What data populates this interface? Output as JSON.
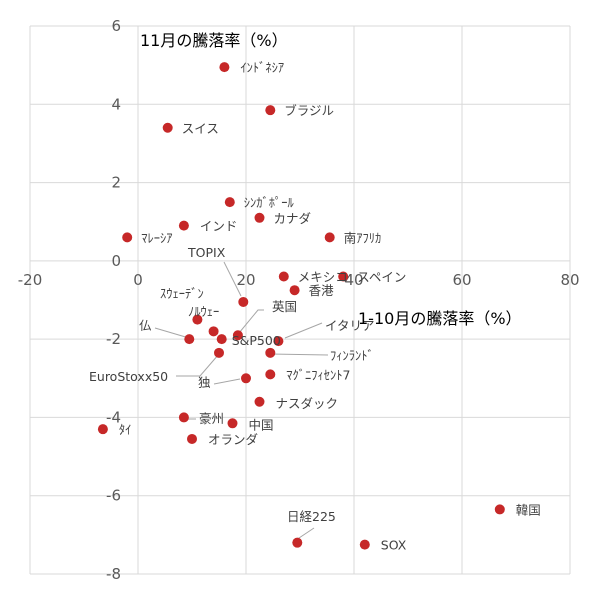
{
  "chart_data": {
    "type": "scatter",
    "xlabel": "1-10月の騰落率（%）",
    "ylabel": "11月の騰落率（%）",
    "xlim": [
      -20,
      80
    ],
    "ylim": [
      -8,
      6
    ],
    "xticks": [
      -20,
      0,
      20,
      40,
      60,
      80
    ],
    "yticks": [
      -8,
      -6,
      -4,
      -2,
      0,
      2,
      4,
      6
    ],
    "grid": true,
    "marker_color": "#c62828",
    "points": [
      {
        "label": "ｲﾝﾄﾞﾈｼｱ",
        "x": 16.0,
        "y": 4.95
      },
      {
        "label": "ブラジル",
        "x": 24.5,
        "y": 3.85
      },
      {
        "label": "スイス",
        "x": 5.5,
        "y": 3.4
      },
      {
        "label": "ｼﾝｶﾞﾎﾟｰﾙ",
        "x": 17.0,
        "y": 1.5
      },
      {
        "label": "カナダ",
        "x": 22.5,
        "y": 1.1
      },
      {
        "label": "インド",
        "x": 8.5,
        "y": 0.9
      },
      {
        "label": "ﾏﾚｰｼｱ",
        "x": -2.0,
        "y": 0.6
      },
      {
        "label": "南ｱﾌﾘｶ",
        "x": 35.5,
        "y": 0.6
      },
      {
        "label": "TOPIX",
        "x": 19.5,
        "y": -1.05
      },
      {
        "label": "メキシコ",
        "x": 27.0,
        "y": -0.4
      },
      {
        "label": "スペイン",
        "x": 38.0,
        "y": -0.4
      },
      {
        "label": "香港",
        "x": 29.0,
        "y": -0.75
      },
      {
        "label": "ｽｳｪｰﾃﾞﾝ",
        "x": 11.0,
        "y": -1.5
      },
      {
        "label": "ﾉﾙｳｪｰ",
        "x": 14.0,
        "y": -1.8
      },
      {
        "label": "英国",
        "x": 18.5,
        "y": -1.9
      },
      {
        "label": "仏",
        "x": 9.5,
        "y": -2.0
      },
      {
        "label": "S&P500",
        "x": 15.5,
        "y": -2.0
      },
      {
        "label": "イタリア",
        "x": 26.0,
        "y": -2.05
      },
      {
        "label": "ﾌｨﾝﾗﾝﾄﾞ",
        "x": 24.5,
        "y": -2.35
      },
      {
        "label": "EuroStoxx50",
        "x": 15.0,
        "y": -2.35
      },
      {
        "label": "ﾏｸﾞﾆﾌｨｾﾝﾄ7",
        "x": 24.5,
        "y": -2.9
      },
      {
        "label": "独",
        "x": 20.0,
        "y": -3.0
      },
      {
        "label": "ナスダック",
        "x": 22.5,
        "y": -3.6
      },
      {
        "label": "豪州",
        "x": 8.5,
        "y": -4.0
      },
      {
        "label": "中国",
        "x": 17.5,
        "y": -4.15
      },
      {
        "label": "ﾀｲ",
        "x": -6.5,
        "y": -4.3
      },
      {
        "label": "オランダ",
        "x": 10.0,
        "y": -4.55
      },
      {
        "label": "韓国",
        "x": 67.0,
        "y": -6.35
      },
      {
        "label": "日経225",
        "x": 29.5,
        "y": -7.2
      },
      {
        "label": "SOX",
        "x": 42.0,
        "y": -7.25
      }
    ]
  }
}
